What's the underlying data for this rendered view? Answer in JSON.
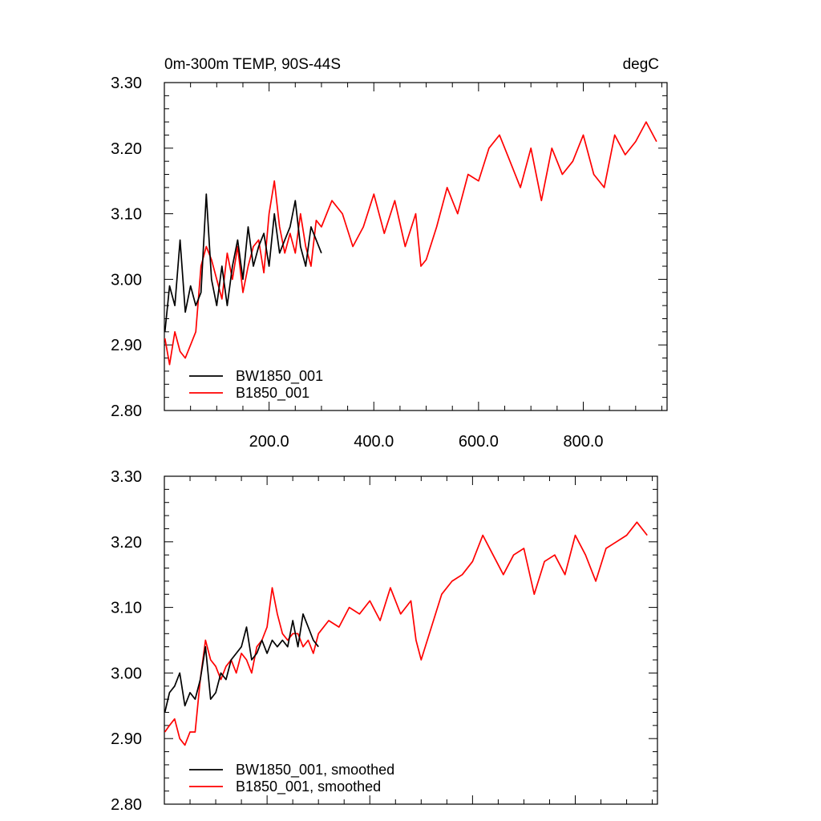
{
  "chart_data": [
    {
      "type": "line",
      "title": "0m-300m TEMP, 90S-44S",
      "units": "degC",
      "xlabel": "",
      "ylabel": "",
      "xlim": [
        0,
        960
      ],
      "ylim": [
        2.8,
        3.3
      ],
      "x_ticks": [
        200,
        400,
        600,
        800
      ],
      "x_tick_labels": [
        "200.0",
        "400.0",
        "600.0",
        "800.0"
      ],
      "y_ticks": [
        2.8,
        2.9,
        3.0,
        3.1,
        3.2,
        3.3
      ],
      "y_tick_labels": [
        "2.80",
        "2.90",
        "3.00",
        "3.10",
        "3.20",
        "3.30"
      ],
      "grid": false,
      "legend_position": "bottom-left",
      "series": [
        {
          "name": "BW1850_001",
          "color": "#000000",
          "x": [
            1,
            10,
            20,
            30,
            40,
            50,
            60,
            70,
            80,
            90,
            100,
            110,
            120,
            130,
            140,
            150,
            160,
            170,
            180,
            190,
            200,
            210,
            220,
            230,
            240,
            250,
            260,
            270,
            280,
            290,
            300
          ],
          "values": [
            2.92,
            2.99,
            2.96,
            3.06,
            2.95,
            2.99,
            2.96,
            2.98,
            3.13,
            3.0,
            2.96,
            3.02,
            2.96,
            3.02,
            3.06,
            3.0,
            3.08,
            3.02,
            3.05,
            3.07,
            3.02,
            3.1,
            3.04,
            3.06,
            3.08,
            3.12,
            3.05,
            3.02,
            3.08,
            3.06,
            3.04
          ]
        },
        {
          "name": "B1850_001",
          "color": "#ff0000",
          "x": [
            1,
            10,
            20,
            30,
            40,
            50,
            60,
            70,
            80,
            90,
            100,
            110,
            120,
            130,
            140,
            150,
            160,
            170,
            180,
            190,
            200,
            210,
            220,
            230,
            240,
            250,
            260,
            270,
            280,
            290,
            300,
            320,
            340,
            360,
            380,
            400,
            420,
            440,
            460,
            480,
            490,
            500,
            520,
            540,
            560,
            580,
            600,
            620,
            640,
            660,
            680,
            700,
            720,
            740,
            760,
            780,
            800,
            820,
            840,
            860,
            880,
            900,
            920,
            940
          ],
          "values": [
            2.91,
            2.87,
            2.92,
            2.89,
            2.88,
            2.9,
            2.92,
            3.02,
            3.05,
            3.03,
            3.0,
            2.97,
            3.04,
            3.0,
            3.05,
            2.98,
            3.02,
            3.05,
            3.06,
            3.01,
            3.1,
            3.15,
            3.08,
            3.04,
            3.07,
            3.04,
            3.1,
            3.05,
            3.02,
            3.09,
            3.08,
            3.12,
            3.1,
            3.05,
            3.08,
            3.13,
            3.07,
            3.12,
            3.05,
            3.1,
            3.02,
            3.03,
            3.08,
            3.14,
            3.1,
            3.16,
            3.15,
            3.2,
            3.22,
            3.18,
            3.14,
            3.2,
            3.12,
            3.2,
            3.16,
            3.18,
            3.22,
            3.16,
            3.14,
            3.22,
            3.19,
            3.21,
            3.24,
            3.21
          ]
        }
      ]
    },
    {
      "type": "line",
      "title": "",
      "xlabel": "",
      "ylabel": "",
      "xlim": [
        0,
        960
      ],
      "ylim": [
        2.8,
        3.3
      ],
      "x_ticks": [
        200,
        400,
        600,
        800
      ],
      "x_tick_labels": [],
      "y_ticks": [
        2.8,
        2.9,
        3.0,
        3.1,
        3.2,
        3.3
      ],
      "y_tick_labels": [
        "2.80",
        "2.90",
        "3.00",
        "3.10",
        "3.20",
        "3.30"
      ],
      "grid": false,
      "legend_position": "bottom-left",
      "series": [
        {
          "name": "BW1850_001, smoothed",
          "color": "#000000",
          "x": [
            1,
            10,
            20,
            30,
            40,
            50,
            60,
            70,
            80,
            90,
            100,
            110,
            120,
            130,
            140,
            150,
            160,
            170,
            180,
            190,
            200,
            210,
            220,
            230,
            240,
            250,
            260,
            270,
            280,
            290,
            300
          ],
          "values": [
            2.94,
            2.97,
            2.98,
            3.0,
            2.95,
            2.97,
            2.96,
            2.99,
            3.04,
            2.96,
            2.97,
            3.0,
            2.99,
            3.02,
            3.03,
            3.04,
            3.07,
            3.02,
            3.03,
            3.05,
            3.03,
            3.05,
            3.04,
            3.05,
            3.04,
            3.08,
            3.04,
            3.09,
            3.07,
            3.05,
            3.04
          ]
        },
        {
          "name": "B1850_001, smoothed",
          "color": "#ff0000",
          "x": [
            1,
            10,
            20,
            30,
            40,
            50,
            60,
            70,
            80,
            90,
            100,
            110,
            120,
            130,
            140,
            150,
            160,
            170,
            180,
            190,
            200,
            210,
            220,
            230,
            240,
            250,
            260,
            270,
            280,
            290,
            300,
            320,
            340,
            360,
            380,
            400,
            420,
            440,
            460,
            480,
            490,
            500,
            520,
            540,
            560,
            580,
            600,
            620,
            640,
            660,
            680,
            700,
            720,
            740,
            760,
            780,
            800,
            820,
            840,
            860,
            880,
            900,
            920,
            940
          ],
          "values": [
            2.91,
            2.92,
            2.93,
            2.9,
            2.89,
            2.91,
            2.91,
            2.99,
            3.05,
            3.02,
            3.01,
            2.99,
            3.01,
            3.02,
            3.0,
            3.03,
            3.02,
            3.0,
            3.04,
            3.05,
            3.07,
            3.13,
            3.09,
            3.06,
            3.05,
            3.06,
            3.06,
            3.04,
            3.05,
            3.03,
            3.06,
            3.08,
            3.07,
            3.1,
            3.09,
            3.11,
            3.08,
            3.13,
            3.09,
            3.11,
            3.05,
            3.02,
            3.07,
            3.12,
            3.14,
            3.15,
            3.17,
            3.21,
            3.18,
            3.15,
            3.18,
            3.19,
            3.12,
            3.17,
            3.18,
            3.15,
            3.21,
            3.18,
            3.14,
            3.19,
            3.2,
            3.21,
            3.23,
            3.21
          ]
        }
      ]
    }
  ]
}
